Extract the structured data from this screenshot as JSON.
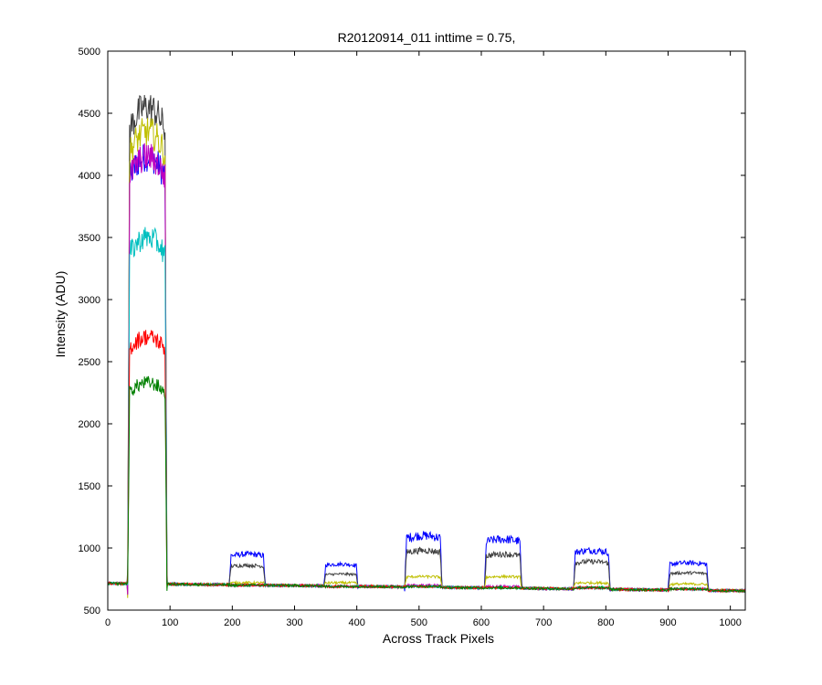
{
  "chart_data": {
    "type": "line",
    "title": "R20120914_011 inttime = 0.75,",
    "xlabel": "Across Track Pixels",
    "ylabel": "Intensity (ADU)",
    "xlim": [
      0,
      1024
    ],
    "ylim": [
      500,
      5000
    ],
    "xticks": [
      0,
      100,
      200,
      300,
      400,
      500,
      600,
      700,
      800,
      900,
      1000
    ],
    "yticks": [
      500,
      1000,
      1500,
      2000,
      2500,
      3000,
      3500,
      4000,
      4500,
      5000
    ],
    "grid": false,
    "legend": "none",
    "baseline": {
      "x": [
        0,
        1024
      ],
      "y": [
        715,
        655
      ]
    },
    "bands": [
      {
        "x_start": 32,
        "x_end": 95
      },
      {
        "x_start": 195,
        "x_end": 253
      },
      {
        "x_start": 347,
        "x_end": 402
      },
      {
        "x_start": 477,
        "x_end": 537
      },
      {
        "x_start": 605,
        "x_end": 665
      },
      {
        "x_start": 748,
        "x_end": 807
      },
      {
        "x_start": 900,
        "x_end": 965
      }
    ],
    "series": [
      {
        "color": "#0000ff",
        "band_levels": [
          4150,
          950,
          870,
          1100,
          1070,
          980,
          880
        ]
      },
      {
        "color": "#404040",
        "band_levels": [
          4550,
          860,
          790,
          980,
          950,
          890,
          800
        ]
      },
      {
        "color": "#bfbf00",
        "band_levels": [
          4350,
          720,
          720,
          770,
          770,
          720,
          710
        ]
      },
      {
        "color": "#bf00bf",
        "band_levels": [
          4150,
          700,
          690,
          700,
          690,
          680,
          670
        ]
      },
      {
        "color": "#00bfbf",
        "band_levels": [
          3500,
          700,
          690,
          690,
          680,
          680,
          670
        ]
      },
      {
        "color": "#ff0000",
        "band_levels": [
          2700,
          700,
          690,
          690,
          680,
          680,
          670
        ]
      },
      {
        "color": "#008000",
        "band_levels": [
          2330,
          700,
          690,
          690,
          680,
          680,
          670
        ]
      }
    ]
  }
}
